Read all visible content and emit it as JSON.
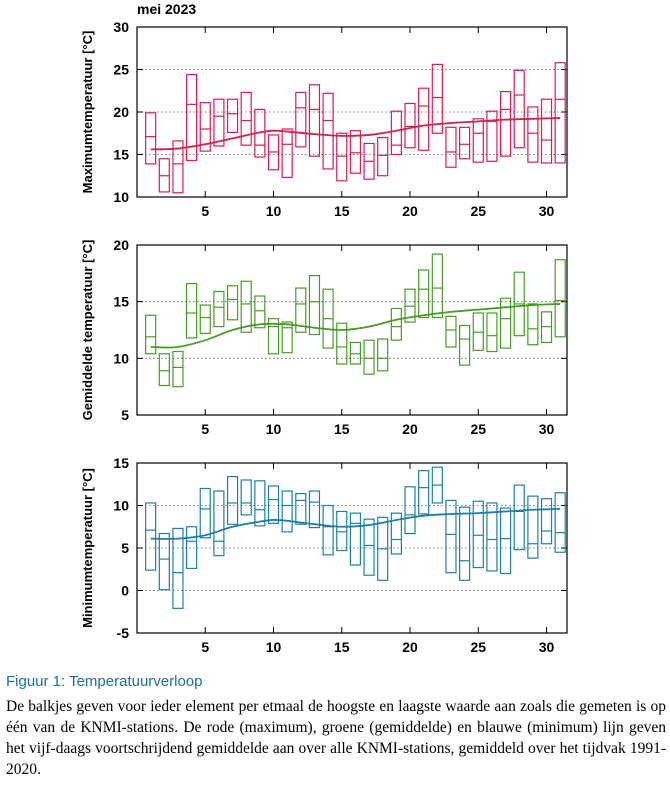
{
  "page_title": "mei 2023",
  "caption": {
    "title": "Figuur 1: Temperatuurverloop",
    "text": "De balkjes geven voor ieder element per etmaal de hoogste en laagste waarde aan zoals die gemeten is op één van de KNMI-stations. De rode (maximum), groene (gemiddelde) en blauwe (minimum) lijn geven het vijf-daags voortschrijdend gemiddelde aan over alle KNMI-stations, gemiddeld over het tijdvak 1991-2020."
  },
  "chart_data": [
    {
      "type": "bar",
      "element": "max",
      "color": "#d42050",
      "ylabel": "Maximumtemperatuur [°C]",
      "ylim": [
        10,
        30
      ],
      "yticks": [
        10,
        15,
        20,
        25,
        30
      ],
      "xlim": [
        0,
        31.5
      ],
      "xticks": [
        5,
        10,
        15,
        20,
        25,
        30
      ],
      "days": [
        1,
        2,
        3,
        4,
        5,
        6,
        7,
        8,
        9,
        10,
        11,
        12,
        13,
        14,
        15,
        16,
        17,
        18,
        19,
        20,
        21,
        22,
        23,
        24,
        25,
        26,
        27,
        28,
        29,
        30,
        31
      ],
      "low": [
        13.9,
        10.6,
        10.5,
        14.3,
        15.4,
        16.0,
        17.6,
        16.1,
        14.7,
        13.2,
        12.3,
        15.9,
        14.8,
        13.3,
        11.9,
        12.8,
        12.1,
        12.5,
        15.0,
        15.8,
        15.5,
        17.5,
        13.5,
        14.5,
        14.1,
        14.2,
        14.8,
        15.8,
        14.1,
        14.0,
        14.0
      ],
      "mean": [
        17.1,
        12.5,
        13.9,
        20.9,
        18.0,
        19.5,
        19.8,
        19.0,
        16.1,
        15.3,
        16.2,
        20.5,
        20.3,
        19.0,
        14.8,
        15.2,
        14.2,
        14.9,
        16.1,
        18.3,
        20.7,
        21.7,
        15.3,
        16.2,
        17.5,
        18.9,
        20.3,
        22.0,
        17.5,
        16.7,
        21.5
      ],
      "high": [
        19.9,
        14.5,
        16.6,
        24.4,
        21.1,
        21.5,
        21.5,
        22.3,
        20.3,
        17.3,
        18.0,
        22.3,
        23.2,
        22.2,
        17.5,
        17.8,
        16.3,
        17.0,
        20.1,
        21.0,
        22.8,
        25.6,
        18.2,
        18.2,
        19.2,
        20.1,
        22.4,
        24.9,
        20.6,
        21.5,
        25.8
      ],
      "smooth_x": [
        1,
        3,
        5,
        7,
        9,
        10,
        11,
        13,
        15,
        17,
        19,
        21,
        23,
        25,
        27,
        29,
        31
      ],
      "smooth_y": [
        15.6,
        15.7,
        16.2,
        16.9,
        17.6,
        17.8,
        17.7,
        17.4,
        17.2,
        17.3,
        17.8,
        18.4,
        18.7,
        18.9,
        19.1,
        19.2,
        19.3
      ]
    },
    {
      "type": "bar",
      "element": "mean",
      "color": "#4a9a2a",
      "ylabel": "Gemiddelde temperatuur [°C]",
      "ylim": [
        5,
        20
      ],
      "yticks": [
        5,
        10,
        15,
        20
      ],
      "xlim": [
        0,
        31.5
      ],
      "xticks": [
        5,
        10,
        15,
        20,
        25,
        30
      ],
      "days": [
        1,
        2,
        3,
        4,
        5,
        6,
        7,
        8,
        9,
        10,
        11,
        12,
        13,
        14,
        15,
        16,
        17,
        18,
        19,
        20,
        21,
        22,
        23,
        24,
        25,
        26,
        27,
        28,
        29,
        30,
        31
      ],
      "low": [
        10.4,
        7.6,
        7.5,
        11.8,
        12.2,
        12.8,
        13.4,
        12.3,
        12.7,
        10.4,
        10.5,
        12.3,
        12.1,
        10.9,
        9.5,
        9.5,
        8.6,
        8.9,
        11.6,
        13.2,
        13.6,
        13.6,
        11.0,
        9.4,
        10.7,
        10.6,
        10.9,
        12.0,
        11.2,
        11.4,
        11.9
      ],
      "mean": [
        11.9,
        8.9,
        9.2,
        14.0,
        13.6,
        14.5,
        15.2,
        14.8,
        14.2,
        12.8,
        12.7,
        14.8,
        15.0,
        13.5,
        11.0,
        10.4,
        10.0,
        10.0,
        12.8,
        14.6,
        16.1,
        16.2,
        12.5,
        11.7,
        12.3,
        12.0,
        13.5,
        14.8,
        12.6,
        12.8,
        15.1
      ],
      "high": [
        13.8,
        10.4,
        10.6,
        16.6,
        14.7,
        15.9,
        16.4,
        16.8,
        15.5,
        13.5,
        13.2,
        16.2,
        17.3,
        16.1,
        13.1,
        11.4,
        11.6,
        11.7,
        14.4,
        16.1,
        17.8,
        19.2,
        13.7,
        12.9,
        14.0,
        14.0,
        15.3,
        17.6,
        14.8,
        14.1,
        18.7
      ],
      "smooth_x": [
        1,
        3,
        5,
        7,
        9,
        11,
        13,
        15,
        17,
        19,
        21,
        23,
        25,
        27,
        29,
        31
      ],
      "smooth_y": [
        11.0,
        11.0,
        11.6,
        12.5,
        13.0,
        13.0,
        12.7,
        12.5,
        12.8,
        13.4,
        13.8,
        14.1,
        14.3,
        14.5,
        14.7,
        14.8
      ]
    },
    {
      "type": "bar",
      "element": "min",
      "color": "#1f7fa3",
      "ylabel": "Minimumtemperatuur [°C]",
      "ylim": [
        -5,
        15
      ],
      "yticks": [
        -5,
        0,
        5,
        10,
        15
      ],
      "xlim": [
        0,
        31.5
      ],
      "xticks": [
        5,
        10,
        15,
        20,
        25,
        30
      ],
      "days": [
        1,
        2,
        3,
        4,
        5,
        6,
        7,
        8,
        9,
        10,
        11,
        12,
        13,
        14,
        15,
        16,
        17,
        18,
        19,
        20,
        21,
        22,
        23,
        24,
        25,
        26,
        27,
        28,
        29,
        30,
        31
      ],
      "low": [
        2.4,
        0.1,
        -2.1,
        2.6,
        6.2,
        4.1,
        7.8,
        8.9,
        7.6,
        7.9,
        6.9,
        7.8,
        7.4,
        4.2,
        4.7,
        3.0,
        1.8,
        1.2,
        4.3,
        6.7,
        9.0,
        10.3,
        2.1,
        1.2,
        2.7,
        2.3,
        2.0,
        4.8,
        3.8,
        5.5,
        4.5
      ],
      "mean": [
        7.1,
        3.7,
        2.1,
        5.8,
        9.6,
        5.8,
        10.3,
        10.3,
        9.5,
        10.7,
        10.0,
        10.6,
        10.4,
        7.5,
        6.9,
        7.9,
        5.3,
        4.9,
        6.0,
        8.9,
        12.1,
        12.4,
        6.6,
        3.5,
        6.5,
        6.0,
        6.1,
        9.3,
        5.5,
        7.0,
        6.8
      ],
      "high": [
        10.3,
        6.7,
        7.3,
        7.5,
        12.0,
        11.7,
        13.4,
        13.0,
        12.9,
        12.3,
        11.7,
        11.4,
        11.7,
        10.0,
        9.3,
        9.1,
        8.4,
        8.6,
        9.1,
        12.2,
        14.1,
        14.5,
        10.6,
        9.8,
        10.5,
        10.3,
        9.7,
        12.4,
        11.1,
        10.8,
        11.5
      ],
      "smooth_x": [
        1,
        3,
        5,
        7,
        9,
        10,
        11,
        13,
        15,
        17,
        19,
        21,
        23,
        25,
        27,
        29,
        31
      ],
      "smooth_y": [
        6.1,
        6.1,
        6.5,
        7.5,
        8.1,
        8.3,
        8.2,
        7.8,
        7.5,
        7.7,
        8.3,
        8.8,
        9.0,
        9.1,
        9.3,
        9.5,
        9.6
      ]
    }
  ]
}
